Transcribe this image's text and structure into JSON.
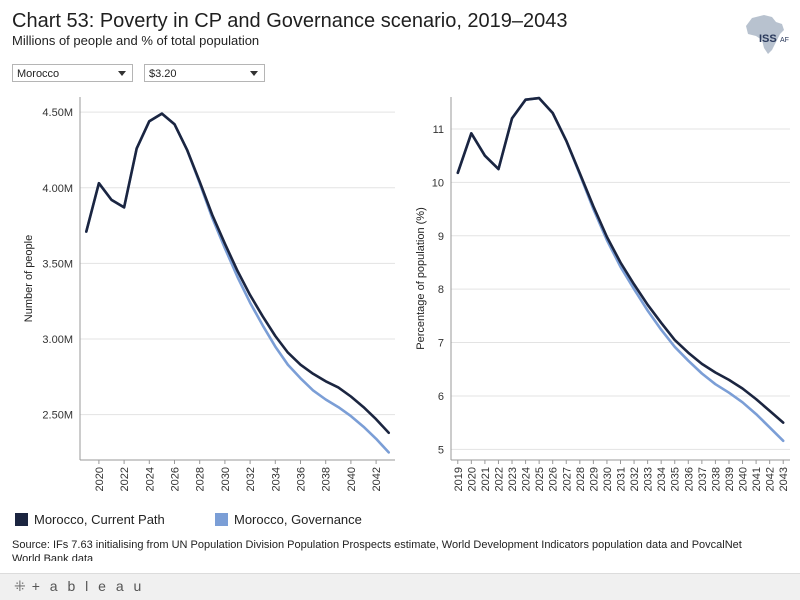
{
  "header": {
    "title": "Chart 53: Poverty in CP and Governance scenario, 2019–2043",
    "subtitle": "Millions of people and % of total population",
    "logo_text": "ISS",
    "logo_suffix": "AF"
  },
  "filters": {
    "country": "Morocco",
    "threshold": "$3.20"
  },
  "legend": {
    "current_path": "Morocco, Current Path",
    "governance": "Morocco, Governance"
  },
  "colors": {
    "current_path": "#1b2540",
    "governance": "#7b9ed6",
    "grid": "#e3e3e3",
    "axis": "#9a9a9a"
  },
  "source": "Source: IFs 7.63 initialising from UN Population Division Population Prospects estimate, World Development Indicators population data and PovcalNet World Bank data",
  "footer": {
    "brand": "+ a b l e a u"
  },
  "chart_data": [
    {
      "type": "line",
      "ylabel": "Number of people",
      "xlabel": "",
      "x": [
        2019,
        2020,
        2021,
        2022,
        2023,
        2024,
        2025,
        2026,
        2027,
        2028,
        2029,
        2030,
        2031,
        2032,
        2033,
        2034,
        2035,
        2036,
        2037,
        2038,
        2039,
        2040,
        2041,
        2042,
        2043
      ],
      "xticks": [
        2020,
        2022,
        2024,
        2026,
        2028,
        2030,
        2032,
        2034,
        2036,
        2038,
        2040,
        2042
      ],
      "yticks": [
        2.5,
        3.0,
        3.5,
        4.0,
        4.5
      ],
      "ytick_labels": [
        "2.50M",
        "3.00M",
        "3.50M",
        "4.00M",
        "4.50M"
      ],
      "ylim": [
        2.2,
        4.6
      ],
      "series": [
        {
          "name": "Morocco, Current Path",
          "values": [
            3.71,
            4.03,
            3.92,
            3.87,
            4.26,
            4.44,
            4.49,
            4.42,
            4.25,
            4.04,
            3.82,
            3.63,
            3.45,
            3.29,
            3.15,
            3.02,
            2.91,
            2.83,
            2.77,
            2.72,
            2.68,
            2.62,
            2.55,
            2.47,
            2.38
          ]
        },
        {
          "name": "Morocco, Governance",
          "values": [
            3.71,
            4.03,
            3.92,
            3.87,
            4.26,
            4.44,
            4.49,
            4.42,
            4.25,
            4.03,
            3.8,
            3.6,
            3.41,
            3.24,
            3.09,
            2.95,
            2.83,
            2.74,
            2.66,
            2.6,
            2.55,
            2.49,
            2.42,
            2.34,
            2.25
          ]
        }
      ]
    },
    {
      "type": "line",
      "ylabel": "Percentage of population (%)",
      "xlabel": "",
      "x": [
        2019,
        2020,
        2021,
        2022,
        2023,
        2024,
        2025,
        2026,
        2027,
        2028,
        2029,
        2030,
        2031,
        2032,
        2033,
        2034,
        2035,
        2036,
        2037,
        2038,
        2039,
        2040,
        2041,
        2042,
        2043
      ],
      "xticks": [
        2019,
        2020,
        2021,
        2022,
        2023,
        2024,
        2025,
        2026,
        2027,
        2028,
        2029,
        2030,
        2031,
        2032,
        2033,
        2034,
        2035,
        2036,
        2037,
        2038,
        2039,
        2040,
        2041,
        2042,
        2043
      ],
      "yticks": [
        5,
        6,
        7,
        8,
        9,
        10,
        11
      ],
      "ytick_labels": [
        "5",
        "6",
        "7",
        "8",
        "9",
        "10",
        "11"
      ],
      "ylim": [
        4.8,
        11.6
      ],
      "series": [
        {
          "name": "Morocco, Current Path",
          "values": [
            10.18,
            10.92,
            10.5,
            10.25,
            11.2,
            11.55,
            11.58,
            11.3,
            10.78,
            10.17,
            9.55,
            8.98,
            8.5,
            8.09,
            7.71,
            7.37,
            7.05,
            6.81,
            6.6,
            6.44,
            6.3,
            6.14,
            5.94,
            5.72,
            5.5
          ]
        },
        {
          "name": "Morocco, Governance",
          "values": [
            10.18,
            10.92,
            10.5,
            10.25,
            11.2,
            11.55,
            11.58,
            11.3,
            10.78,
            10.15,
            9.5,
            8.92,
            8.42,
            8.0,
            7.6,
            7.24,
            6.92,
            6.66,
            6.42,
            6.22,
            6.06,
            5.88,
            5.66,
            5.41,
            5.16
          ]
        }
      ]
    }
  ]
}
